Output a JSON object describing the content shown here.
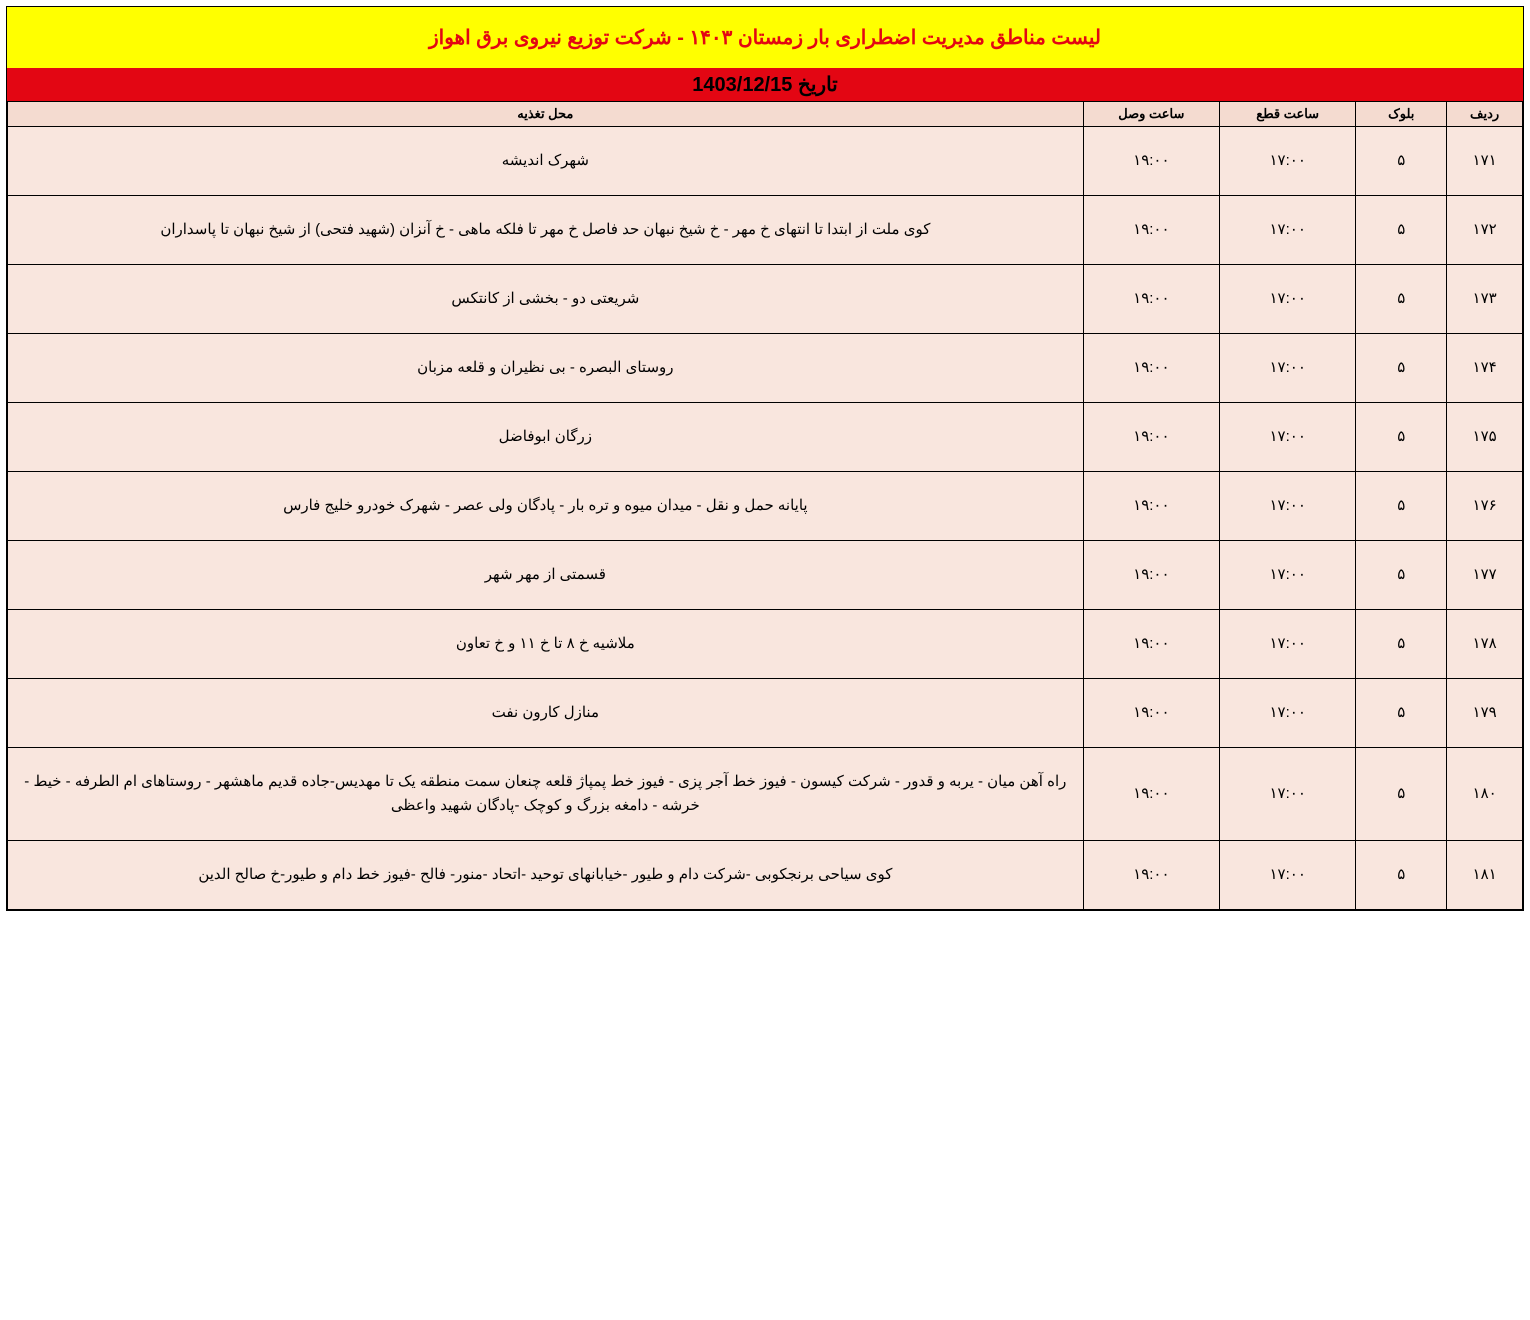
{
  "colors": {
    "title_bg": "#ffff00",
    "title_text": "#e30613",
    "date_bg": "#e30613",
    "date_text": "#000000",
    "header_bg": "#f4dbd0",
    "header_text": "#000000",
    "row_bg": "#f9e6de",
    "row_text": "#000000",
    "border": "#000000"
  },
  "fonts": {
    "title_size": "20px",
    "date_size": "20px",
    "header_size": "13px",
    "cell_size": "15px"
  },
  "header": {
    "title": "لیست مناطق مدیریت اضطراری بار زمستان ۱۴۰۳ - شرکت توزیع نیروی برق اهواز",
    "date_label": "تاریخ 1403/12/15"
  },
  "columns": {
    "radif": "ردیف",
    "block": "بلوک",
    "cut": "ساعت قطع",
    "connect": "ساعت وصل",
    "location": "محل تغذیه"
  },
  "rows": [
    {
      "radif": "۱۷۱",
      "block": "۵",
      "cut": "۱۷:۰۰",
      "connect": "۱۹:۰۰",
      "location": "شهرک اندیشه"
    },
    {
      "radif": "۱۷۲",
      "block": "۵",
      "cut": "۱۷:۰۰",
      "connect": "۱۹:۰۰",
      "location": "کوی ملت از ابتدا تا انتهای خ مهر - خ شیخ نبهان حد فاصل خ مهر تا فلکه ماهی - خ آنزان (شهید فتحی) از شیخ نبهان تا پاسداران"
    },
    {
      "radif": "۱۷۳",
      "block": "۵",
      "cut": "۱۷:۰۰",
      "connect": "۱۹:۰۰",
      "location": "شریعتی دو - بخشی از کانتکس"
    },
    {
      "radif": "۱۷۴",
      "block": "۵",
      "cut": "۱۷:۰۰",
      "connect": "۱۹:۰۰",
      "location": "روستای البصره - بی نظیران و قلعه مزبان"
    },
    {
      "radif": "۱۷۵",
      "block": "۵",
      "cut": "۱۷:۰۰",
      "connect": "۱۹:۰۰",
      "location": "زرگان ابوفاضل"
    },
    {
      "radif": "۱۷۶",
      "block": "۵",
      "cut": "۱۷:۰۰",
      "connect": "۱۹:۰۰",
      "location": "پایانه حمل و نقل - میدان میوه و تره بار - پادگان ولی عصر - شهرک خودرو خلیج فارس"
    },
    {
      "radif": "۱۷۷",
      "block": "۵",
      "cut": "۱۷:۰۰",
      "connect": "۱۹:۰۰",
      "location": "قسمتی از مهر شهر"
    },
    {
      "radif": "۱۷۸",
      "block": "۵",
      "cut": "۱۷:۰۰",
      "connect": "۱۹:۰۰",
      "location": "ملاشیه خ ۸ تا خ ۱۱ و خ تعاون"
    },
    {
      "radif": "۱۷۹",
      "block": "۵",
      "cut": "۱۷:۰۰",
      "connect": "۱۹:۰۰",
      "location": "منازل کارون نفت"
    },
    {
      "radif": "۱۸۰",
      "block": "۵",
      "cut": "۱۷:۰۰",
      "connect": "۱۹:۰۰",
      "location": "راه آهن میان - یربه و قدور - شرکت کیسون - فیوز خط آجر پزی - فیوز خط پمپاژ قلعه چنعان سمت منطقه یک تا مهدیس-جاده قدیم ماهشهر - روستاهای ام الطرفه - خیط - خرشه - دامغه بزرگ و کوچک -پادگان شهید واعظی"
    },
    {
      "radif": "۱۸۱",
      "block": "۵",
      "cut": "۱۷:۰۰",
      "connect": "۱۹:۰۰",
      "location": "کوی سیاحی برنجکوبی -شرکت دام و طیور -خیابانهای توحید -اتحاد -منور- فالح -فیوز خط دام و طیور-خ صالح الدین"
    }
  ]
}
